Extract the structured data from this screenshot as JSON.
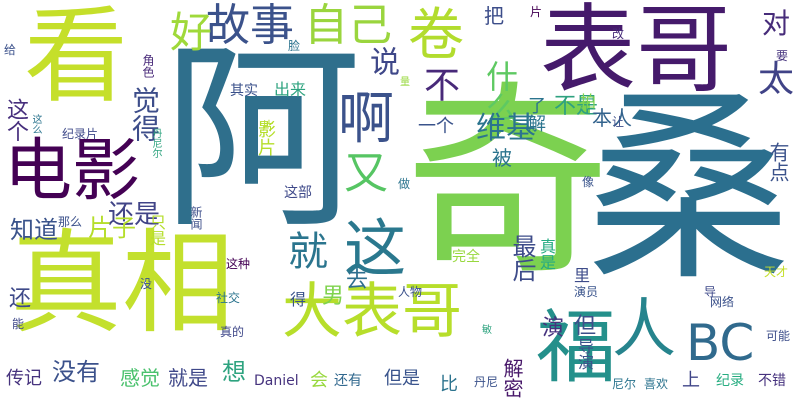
{
  "cloud": {
    "words": [
      {
        "text": "看",
        "color": "#c5df2a"
      },
      {
        "text": "表哥",
        "color": "#451a6b"
      },
      {
        "text": "阿",
        "color": "#2f6f8c"
      },
      {
        "text": "奇",
        "color": "#7cd150"
      },
      {
        "text": "桑",
        "color": "#2b6f8e"
      },
      {
        "text": "真相",
        "color": "#c3e02d"
      },
      {
        "text": "电影",
        "color": "#440154"
      },
      {
        "text": "大表哥",
        "color": "#b7de2b"
      },
      {
        "text": "卷",
        "color": "#b2dc2e"
      },
      {
        "text": "故事",
        "color": "#3b528b"
      },
      {
        "text": "自己",
        "color": "#9ad53e"
      },
      {
        "text": "好",
        "color": "#9fd93a"
      },
      {
        "text": "啊",
        "color": "#3b528b"
      },
      {
        "text": "这",
        "color": "#2a788e"
      },
      {
        "text": "BC",
        "color": "#306a8d"
      },
      {
        "text": "福",
        "color": "#24908b"
      },
      {
        "text": "人",
        "color": "#26848d"
      },
      {
        "text": "太",
        "color": "#404387"
      },
      {
        "text": "对",
        "color": "#472c7a"
      },
      {
        "text": "又",
        "color": "#56c563"
      },
      {
        "text": "就",
        "color": "#2b758e"
      },
      {
        "text": "说",
        "color": "#3f4889"
      },
      {
        "text": "不",
        "color": "#482979"
      },
      {
        "text": "什么",
        "color": "#5ec962"
      },
      {
        "text": "维基",
        "color": "#2b748e"
      },
      {
        "text": "不是",
        "color": "#2ea17f"
      },
      {
        "text": "本人",
        "color": "#33638d"
      },
      {
        "text": "觉得",
        "color": "#3d4d8a"
      },
      {
        "text": "这个",
        "color": "#472f7d"
      },
      {
        "text": "还是",
        "color": "#414487"
      },
      {
        "text": "知道",
        "color": "#3a538b"
      },
      {
        "text": "片子",
        "color": "#b5de2b"
      },
      {
        "text": "最后",
        "color": "#3e4c8a"
      },
      {
        "text": "男",
        "color": "#7fd34e"
      },
      {
        "text": "去",
        "color": "#2e6e8e"
      },
      {
        "text": "还",
        "color": "#3e4989"
      },
      {
        "text": "没有",
        "color": "#3b518b"
      },
      {
        "text": "感觉",
        "color": "#4ac16d"
      },
      {
        "text": "就是",
        "color": "#3f4889"
      },
      {
        "text": "想",
        "color": "#2ea37f"
      },
      {
        "text": "会",
        "color": "#98d83e"
      },
      {
        "text": "还有",
        "color": "#31688e"
      },
      {
        "text": "但是",
        "color": "#3a548c"
      },
      {
        "text": "传记",
        "color": "#46337e"
      },
      {
        "text": "解密",
        "color": "#48186a"
      },
      {
        "text": "比",
        "color": "#2c738e"
      },
      {
        "text": "演",
        "color": "#46327e"
      },
      {
        "text": "但",
        "color": "#3d4e8a"
      },
      {
        "text": "上",
        "color": "#404588"
      },
      {
        "text": "纪录",
        "color": "#27ad81"
      },
      {
        "text": "不错",
        "color": "#46327e"
      },
      {
        "text": "有点",
        "color": "#3b528b"
      },
      {
        "text": "一个",
        "color": "#3a538b"
      },
      {
        "text": "了解",
        "color": "#2b748e"
      },
      {
        "text": "把",
        "color": "#3d4e8a"
      },
      {
        "text": "被",
        "color": "#2b748e"
      },
      {
        "text": "影片",
        "color": "#b5de2b"
      },
      {
        "text": "其实",
        "color": "#3b518b"
      },
      {
        "text": "出来",
        "color": "#2ea37f"
      },
      {
        "text": "这部",
        "color": "#3e4989"
      },
      {
        "text": "只是",
        "color": "#b5de2b"
      },
      {
        "text": "完全",
        "color": "#98d83e"
      },
      {
        "text": "真是",
        "color": "#25ab82"
      },
      {
        "text": "里",
        "color": "#3e4c8a"
      },
      {
        "text": "导演",
        "color": "#3b528b"
      },
      {
        "text": "拍",
        "color": "#7fd34e"
      },
      {
        "text": "片",
        "color": "#440154"
      },
      {
        "text": "角色",
        "color": "#482979"
      },
      {
        "text": "脸",
        "color": "#2c738e"
      },
      {
        "text": "改",
        "color": "#472c7a"
      },
      {
        "text": "要",
        "color": "#46337e"
      },
      {
        "text": "给",
        "color": "#3b518b"
      },
      {
        "text": "让",
        "color": "#3d4e8a"
      },
      {
        "text": "像",
        "color": "#3a548c"
      },
      {
        "text": "做",
        "color": "#2b748e"
      },
      {
        "text": "纪录片",
        "color": "#3e4989"
      },
      {
        "text": "丹尼尔",
        "color": "#2ea37f"
      },
      {
        "text": "这么",
        "color": "#2b748e"
      },
      {
        "text": "那么",
        "color": "#3b518b"
      },
      {
        "text": "新闻",
        "color": "#3d4e8a"
      },
      {
        "text": "这种",
        "color": "#440154"
      },
      {
        "text": "社交",
        "color": "#2b748e"
      },
      {
        "text": "真的",
        "color": "#3f4889"
      },
      {
        "text": "人物",
        "color": "#3b518b"
      },
      {
        "text": "演员",
        "color": "#3a548c"
      },
      {
        "text": "天才",
        "color": "#c5df2a"
      },
      {
        "text": "网络",
        "color": "#3b518b"
      },
      {
        "text": "可能",
        "color": "#3d4e8a"
      },
      {
        "text": "Daniel",
        "color": "#46337e"
      },
      {
        "text": "丹尼",
        "color": "#3b528b"
      },
      {
        "text": "尼尔",
        "color": "#2b748e"
      },
      {
        "text": "喜欢",
        "color": "#2c738e"
      },
      {
        "text": "没",
        "color": "#3b518b"
      },
      {
        "text": "能",
        "color": "#3f4889"
      },
      {
        "text": "得",
        "color": "#3a538b"
      },
      {
        "text": "导",
        "color": "#3e4989"
      },
      {
        "text": "片",
        "color": "#b5de2b"
      },
      {
        "text": "敏",
        "color": "#2ea37f"
      },
      {
        "text": "量",
        "color": "#98d83e"
      }
    ]
  }
}
